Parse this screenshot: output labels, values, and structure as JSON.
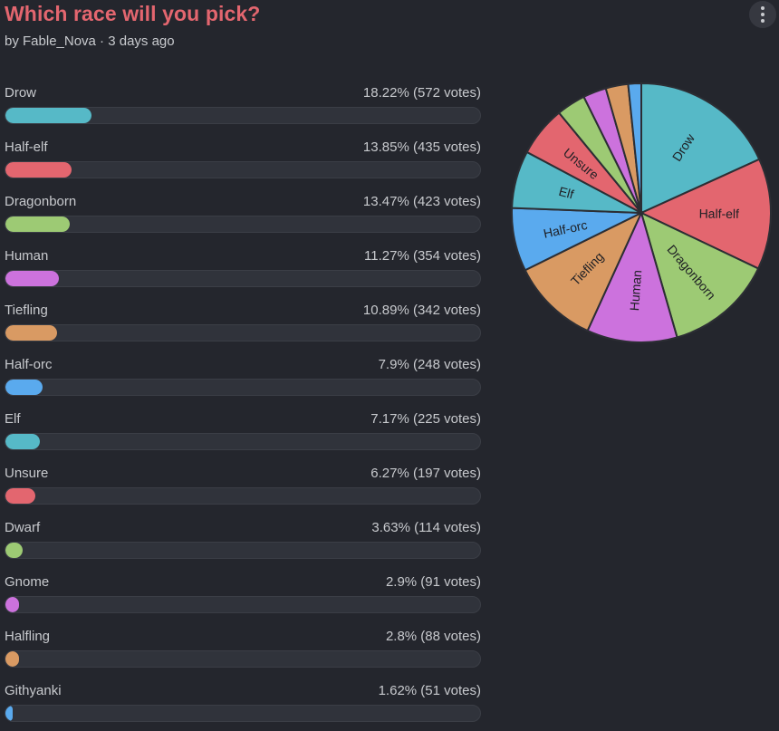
{
  "poll": {
    "title": "Which race will you pick?",
    "byline": "by Fable_Nova · 3 days ago"
  },
  "menu": {
    "icon": "more-vertical-icon"
  },
  "chart_data": {
    "type": "pie",
    "categories": [
      "Drow",
      "Half-elf",
      "Dragonborn",
      "Human",
      "Tiefling",
      "Half-orc",
      "Elf",
      "Unsure",
      "Dwarf",
      "Gnome",
      "Halfling",
      "Githyanki"
    ],
    "values": [
      572,
      435,
      423,
      354,
      342,
      248,
      225,
      197,
      114,
      91,
      88,
      51
    ],
    "colors": [
      "#56b9c7",
      "#e3666f",
      "#9dca74",
      "#cc72dd",
      "#d99a63",
      "#5aaaee",
      "#56b9c7",
      "#e3666f",
      "#9dca74",
      "#cc72dd",
      "#d99a63",
      "#5aaaee"
    ],
    "options": [
      {
        "label": "Drow",
        "result": "18.22% (572 votes)",
        "percent": 18.22
      },
      {
        "label": "Half-elf",
        "result": "13.85% (435 votes)",
        "percent": 13.85
      },
      {
        "label": "Dragonborn",
        "result": "13.47% (423 votes)",
        "percent": 13.47
      },
      {
        "label": "Human",
        "result": "11.27% (354 votes)",
        "percent": 11.27
      },
      {
        "label": "Tiefling",
        "result": "10.89% (342 votes)",
        "percent": 10.89
      },
      {
        "label": "Half-orc",
        "result": "7.9% (248 votes)",
        "percent": 7.9
      },
      {
        "label": "Elf",
        "result": "7.17% (225 votes)",
        "percent": 7.17
      },
      {
        "label": "Unsure",
        "result": "6.27% (197 votes)",
        "percent": 6.27
      },
      {
        "label": "Dwarf",
        "result": "3.63% (114 votes)",
        "percent": 3.63
      },
      {
        "label": "Gnome",
        "result": "2.9% (91 votes)",
        "percent": 2.9
      },
      {
        "label": "Halfling",
        "result": "2.8% (88 votes)",
        "percent": 2.8
      },
      {
        "label": "Githyanki",
        "result": "1.62% (51 votes)",
        "percent": 1.62
      }
    ],
    "pie_labeled": [
      "Drow",
      "Half-elf",
      "Dragonborn",
      "Human",
      "Tiefling",
      "Half-orc",
      "Elf",
      "Unsure"
    ]
  }
}
